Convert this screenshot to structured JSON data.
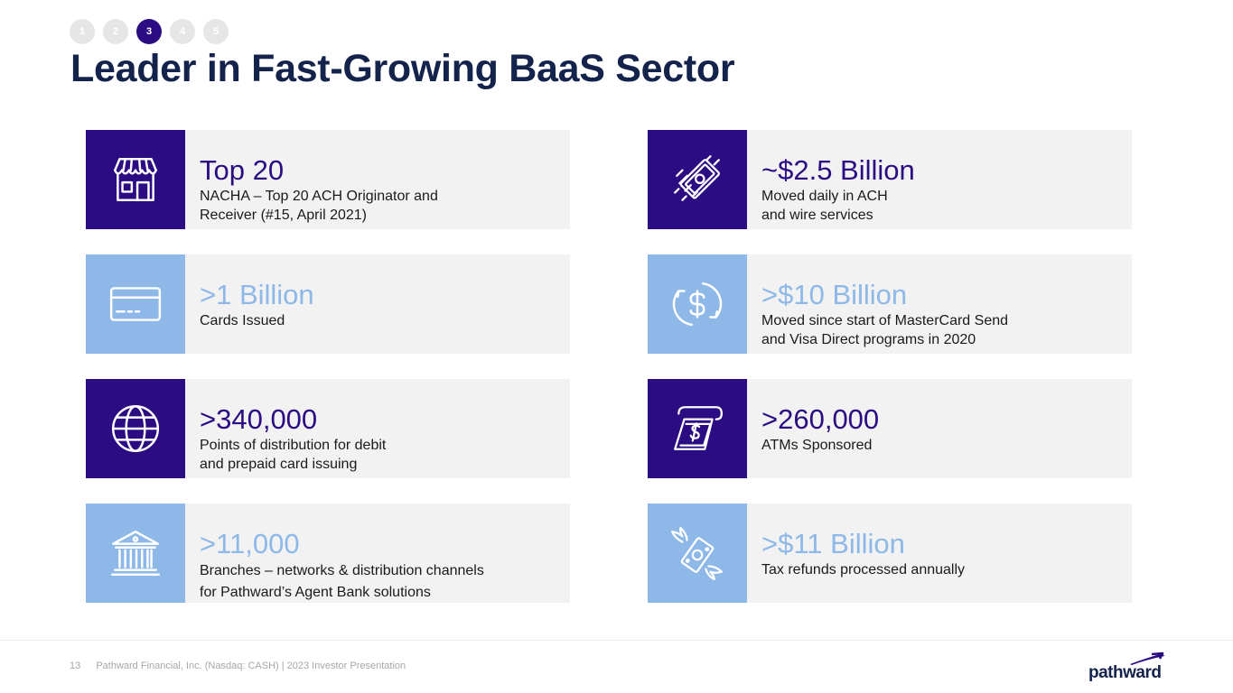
{
  "pager": {
    "pages": [
      "1",
      "2",
      "3",
      "4",
      "5"
    ],
    "active_index": 2
  },
  "title": "Leader in Fast-Growing BaaS Sector",
  "colors": {
    "dark_purple": "#2b0c82",
    "light_blue": "#8db8e8",
    "navy_title": "#14234b",
    "card_bg": "#f2f2f2"
  },
  "stats": {
    "top20": {
      "value": "Top 20",
      "lines": [
        "NACHA – Top 20 ACH Originator and",
        "Receiver (#15, April 2021)"
      ],
      "icon": "storefront-icon"
    },
    "cards": {
      "value": ">1 Billion",
      "lines": [
        "Cards Issued"
      ],
      "icon": "credit-card-icon"
    },
    "distribution": {
      "value": ">340,000",
      "lines": [
        "Points of distribution for debit",
        "and prepaid card issuing"
      ],
      "icon": "globe-icon"
    },
    "branches": {
      "value": ">11,000",
      "lines": [
        "Branches – networks & distribution channels",
        "for Pathward’s Agent Bank solutions"
      ],
      "icon": "bank-building-icon"
    },
    "daily": {
      "value": "~$2.5 Billion",
      "lines": [
        "Moved daily in ACH",
        "and wire services"
      ],
      "icon": "flying-money-icon"
    },
    "moved": {
      "value": ">$10 Billion",
      "lines": [
        "Moved since start of MasterCard Send",
        "and Visa Direct programs in 2020"
      ],
      "icon": "dollar-exchange-icon"
    },
    "atms": {
      "value": ">260,000",
      "lines": [
        "ATMs Sponsored"
      ],
      "icon": "atm-cash-icon"
    },
    "refunds": {
      "value": ">$11 Billion",
      "lines": [
        "Tax refunds processed annually"
      ],
      "icon": "winged-money-icon"
    }
  },
  "footer": {
    "page_number": "13",
    "text": "Pathward Financial, Inc. (Nasdaq: CASH) | 2023 Investor Presentation"
  },
  "logo": {
    "text": "pathward"
  }
}
